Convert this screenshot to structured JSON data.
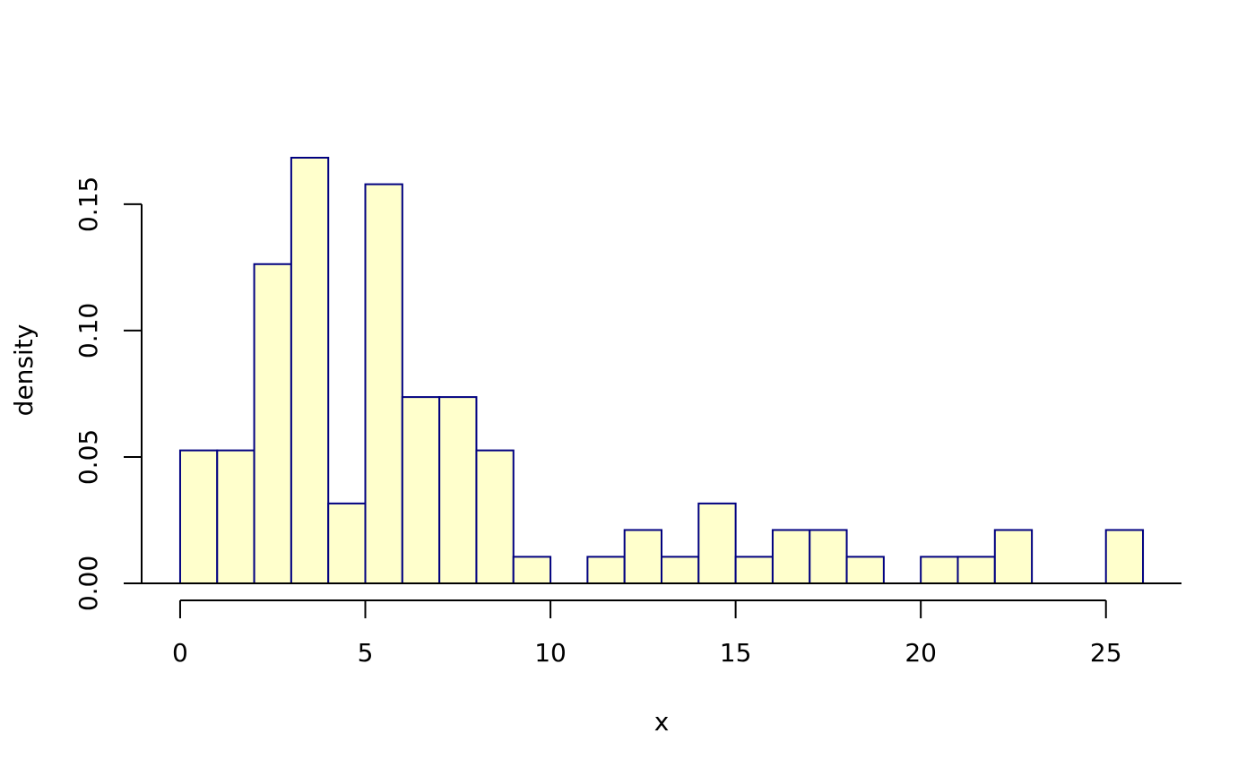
{
  "chart_data": {
    "type": "bar",
    "histogram": true,
    "title": "",
    "xlabel": "x",
    "ylabel": "density",
    "bin_edges": [
      0,
      1,
      2,
      3,
      4,
      5,
      6,
      7,
      8,
      9,
      10,
      11,
      12,
      13,
      14,
      15,
      16,
      17,
      18,
      19,
      20,
      21,
      22,
      23,
      24,
      25,
      26
    ],
    "values": [
      0.0526,
      0.0526,
      0.1263,
      0.1684,
      0.0316,
      0.1579,
      0.0737,
      0.0737,
      0.0526,
      0.0105,
      0,
      0.0105,
      0.0211,
      0.0105,
      0.0316,
      0.0105,
      0.0211,
      0.0211,
      0.0105,
      0,
      0.0105,
      0.0105,
      0.0211,
      0,
      0,
      0.0211
    ],
    "xlim": [
      -1.04,
      27.04
    ],
    "ylim": [
      0,
      0.1684
    ],
    "x_ticks": [
      0,
      5,
      10,
      15,
      20,
      25
    ],
    "x_tick_labels": [
      "0",
      "5",
      "10",
      "15",
      "20",
      "25"
    ],
    "y_ticks": [
      0,
      0.05,
      0.1,
      0.15
    ],
    "y_tick_labels": [
      "0.00",
      "0.05",
      "0.10",
      "0.15"
    ],
    "bar_fill": "#ffffcc",
    "bar_stroke": "#000080",
    "grid": false,
    "legend": "none"
  }
}
